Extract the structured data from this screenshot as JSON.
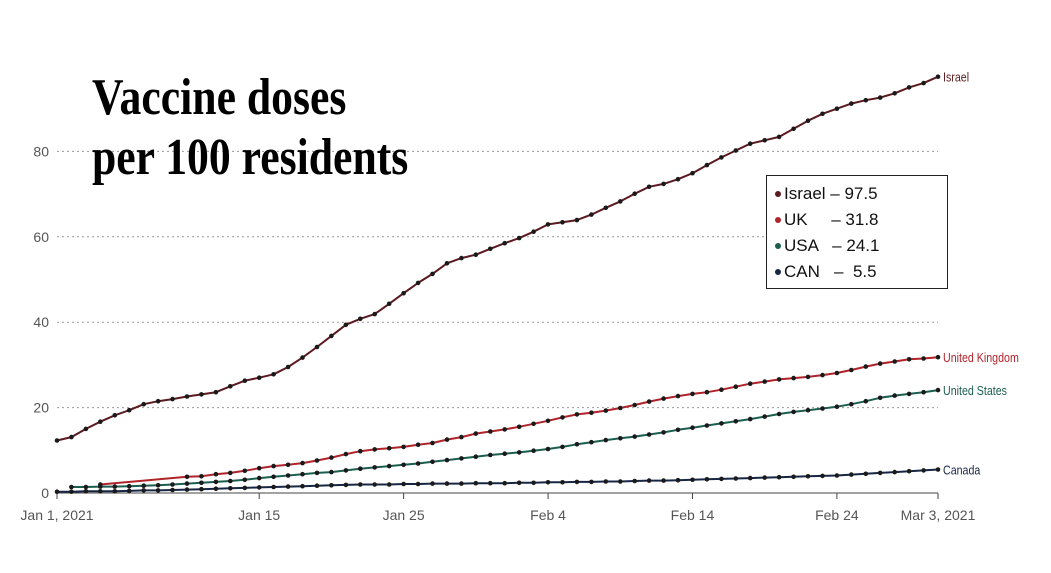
{
  "title": {
    "line1": "Vaccine doses",
    "line2": "per 100 residents"
  },
  "legend": [
    {
      "marker": "dot",
      "color": "#5b1a1f",
      "text": "Israel – 97.5"
    },
    {
      "marker": "dot",
      "color": "#b0232a",
      "text": "UK     – 31.8"
    },
    {
      "marker": "dot",
      "color": "#1b5e4f",
      "text": "USA   – 24.1"
    },
    {
      "marker": "dot",
      "color": "#172645",
      "text": "CAN   –  5.5"
    }
  ],
  "chart_data": {
    "type": "line",
    "x_axis": {
      "range": [
        "2021-01-01",
        "2021-03-03"
      ],
      "tick_dates": [
        "2021-01-01",
        "2021-01-15",
        "2021-01-25",
        "2021-02-04",
        "2021-02-14",
        "2021-02-24",
        "2021-03-03"
      ],
      "tick_labels": [
        "Jan 1, 2021",
        "Jan 15",
        "Jan 25",
        "Feb 4",
        "Feb 14",
        "Feb 24",
        "Mar 3, 2021"
      ]
    },
    "y_axis": {
      "range": [
        0,
        100
      ],
      "ticks": [
        0,
        20,
        40,
        60,
        80
      ],
      "tick_labels": [
        "0",
        "20",
        "40",
        "60",
        "80"
      ]
    },
    "grid": "horizontal dotted",
    "series": [
      {
        "name": "Israel",
        "color": "#5b1a1f",
        "points": [
          [
            "2021-01-01",
            12.3
          ],
          [
            "2021-01-02",
            13.1
          ],
          [
            "2021-01-03",
            15.0
          ],
          [
            "2021-01-04",
            16.7
          ],
          [
            "2021-01-05",
            18.2
          ],
          [
            "2021-01-06",
            19.4
          ],
          [
            "2021-01-07",
            20.8
          ],
          [
            "2021-01-08",
            21.5
          ],
          [
            "2021-01-09",
            22.0
          ],
          [
            "2021-01-10",
            22.6
          ],
          [
            "2021-01-11",
            23.1
          ],
          [
            "2021-01-12",
            23.6
          ],
          [
            "2021-01-13",
            25.0
          ],
          [
            "2021-01-14",
            26.3
          ],
          [
            "2021-01-15",
            27.0
          ],
          [
            "2021-01-16",
            27.8
          ],
          [
            "2021-01-17",
            29.5
          ],
          [
            "2021-01-18",
            31.7
          ],
          [
            "2021-01-19",
            34.2
          ],
          [
            "2021-01-20",
            36.8
          ],
          [
            "2021-01-21",
            39.4
          ],
          [
            "2021-01-22",
            40.8
          ],
          [
            "2021-01-23",
            41.9
          ],
          [
            "2021-01-24",
            44.3
          ],
          [
            "2021-01-25",
            46.8
          ],
          [
            "2021-01-26",
            49.2
          ],
          [
            "2021-01-27",
            51.3
          ],
          [
            "2021-01-28",
            53.8
          ],
          [
            "2021-01-29",
            55.0
          ],
          [
            "2021-01-30",
            55.8
          ],
          [
            "2021-01-31",
            57.2
          ],
          [
            "2021-02-01",
            58.5
          ],
          [
            "2021-02-02",
            59.7
          ],
          [
            "2021-02-03",
            61.2
          ],
          [
            "2021-02-04",
            62.9
          ],
          [
            "2021-02-05",
            63.4
          ],
          [
            "2021-02-06",
            63.9
          ],
          [
            "2021-02-07",
            65.2
          ],
          [
            "2021-02-08",
            66.8
          ],
          [
            "2021-02-09",
            68.3
          ],
          [
            "2021-02-10",
            70.1
          ],
          [
            "2021-02-11",
            71.7
          ],
          [
            "2021-02-12",
            72.4
          ],
          [
            "2021-02-13",
            73.5
          ],
          [
            "2021-02-14",
            74.9
          ],
          [
            "2021-02-15",
            76.8
          ],
          [
            "2021-02-16",
            78.6
          ],
          [
            "2021-02-17",
            80.2
          ],
          [
            "2021-02-18",
            81.8
          ],
          [
            "2021-02-19",
            82.6
          ],
          [
            "2021-02-20",
            83.4
          ],
          [
            "2021-02-21",
            85.3
          ],
          [
            "2021-02-22",
            87.2
          ],
          [
            "2021-02-23",
            88.8
          ],
          [
            "2021-02-24",
            90.0
          ],
          [
            "2021-02-25",
            91.2
          ],
          [
            "2021-02-26",
            92.0
          ],
          [
            "2021-02-27",
            92.6
          ],
          [
            "2021-02-28",
            93.6
          ],
          [
            "2021-03-01",
            95.0
          ],
          [
            "2021-03-02",
            96.0
          ],
          [
            "2021-03-03",
            97.5
          ]
        ]
      },
      {
        "name": "United Kingdom",
        "color": "#b0232a",
        "points": [
          [
            "2021-01-04",
            2.0
          ],
          [
            "2021-01-10",
            3.8
          ],
          [
            "2021-01-11",
            3.9
          ],
          [
            "2021-01-12",
            4.4
          ],
          [
            "2021-01-13",
            4.7
          ],
          [
            "2021-01-14",
            5.2
          ],
          [
            "2021-01-15",
            5.8
          ],
          [
            "2021-01-16",
            6.3
          ],
          [
            "2021-01-17",
            6.6
          ],
          [
            "2021-01-18",
            7.0
          ],
          [
            "2021-01-19",
            7.6
          ],
          [
            "2021-01-20",
            8.3
          ],
          [
            "2021-01-21",
            9.1
          ],
          [
            "2021-01-22",
            9.8
          ],
          [
            "2021-01-23",
            10.2
          ],
          [
            "2021-01-24",
            10.5
          ],
          [
            "2021-01-25",
            10.8
          ],
          [
            "2021-01-26",
            11.3
          ],
          [
            "2021-01-27",
            11.7
          ],
          [
            "2021-01-28",
            12.5
          ],
          [
            "2021-01-29",
            13.1
          ],
          [
            "2021-01-30",
            13.9
          ],
          [
            "2021-01-31",
            14.4
          ],
          [
            "2021-02-01",
            14.9
          ],
          [
            "2021-02-02",
            15.5
          ],
          [
            "2021-02-03",
            16.2
          ],
          [
            "2021-02-04",
            16.9
          ],
          [
            "2021-02-05",
            17.7
          ],
          [
            "2021-02-06",
            18.4
          ],
          [
            "2021-02-07",
            18.8
          ],
          [
            "2021-02-08",
            19.3
          ],
          [
            "2021-02-09",
            19.9
          ],
          [
            "2021-02-10",
            20.6
          ],
          [
            "2021-02-11",
            21.4
          ],
          [
            "2021-02-12",
            22.1
          ],
          [
            "2021-02-13",
            22.7
          ],
          [
            "2021-02-14",
            23.2
          ],
          [
            "2021-02-15",
            23.6
          ],
          [
            "2021-02-16",
            24.2
          ],
          [
            "2021-02-17",
            24.9
          ],
          [
            "2021-02-18",
            25.6
          ],
          [
            "2021-02-19",
            26.1
          ],
          [
            "2021-02-20",
            26.6
          ],
          [
            "2021-02-21",
            26.9
          ],
          [
            "2021-02-22",
            27.2
          ],
          [
            "2021-02-23",
            27.6
          ],
          [
            "2021-02-24",
            28.1
          ],
          [
            "2021-02-25",
            28.8
          ],
          [
            "2021-02-26",
            29.6
          ],
          [
            "2021-02-27",
            30.3
          ],
          [
            "2021-02-28",
            30.8
          ],
          [
            "2021-03-01",
            31.3
          ],
          [
            "2021-03-02",
            31.5
          ],
          [
            "2021-03-03",
            31.8
          ]
        ]
      },
      {
        "name": "United States",
        "color": "#1b5e4f",
        "points": [
          [
            "2021-01-02",
            1.4
          ],
          [
            "2021-01-03",
            1.4
          ],
          [
            "2021-01-04",
            1.5
          ],
          [
            "2021-01-05",
            1.5
          ],
          [
            "2021-01-06",
            1.6
          ],
          [
            "2021-01-07",
            1.7
          ],
          [
            "2021-01-08",
            1.8
          ],
          [
            "2021-01-09",
            2.0
          ],
          [
            "2021-01-10",
            2.2
          ],
          [
            "2021-01-11",
            2.4
          ],
          [
            "2021-01-12",
            2.6
          ],
          [
            "2021-01-13",
            2.8
          ],
          [
            "2021-01-14",
            3.1
          ],
          [
            "2021-01-15",
            3.5
          ],
          [
            "2021-01-16",
            3.8
          ],
          [
            "2021-01-17",
            4.1
          ],
          [
            "2021-01-18",
            4.4
          ],
          [
            "2021-01-19",
            4.7
          ],
          [
            "2021-01-20",
            4.9
          ],
          [
            "2021-01-21",
            5.3
          ],
          [
            "2021-01-22",
            5.7
          ],
          [
            "2021-01-23",
            6.0
          ],
          [
            "2021-01-24",
            6.3
          ],
          [
            "2021-01-25",
            6.6
          ],
          [
            "2021-01-26",
            6.9
          ],
          [
            "2021-01-27",
            7.3
          ],
          [
            "2021-01-28",
            7.7
          ],
          [
            "2021-01-29",
            8.1
          ],
          [
            "2021-01-30",
            8.5
          ],
          [
            "2021-01-31",
            8.9
          ],
          [
            "2021-02-01",
            9.2
          ],
          [
            "2021-02-02",
            9.5
          ],
          [
            "2021-02-03",
            9.9
          ],
          [
            "2021-02-04",
            10.3
          ],
          [
            "2021-02-05",
            10.8
          ],
          [
            "2021-02-06",
            11.4
          ],
          [
            "2021-02-07",
            11.9
          ],
          [
            "2021-02-08",
            12.4
          ],
          [
            "2021-02-09",
            12.8
          ],
          [
            "2021-02-10",
            13.2
          ],
          [
            "2021-02-11",
            13.7
          ],
          [
            "2021-02-12",
            14.2
          ],
          [
            "2021-02-13",
            14.8
          ],
          [
            "2021-02-14",
            15.3
          ],
          [
            "2021-02-15",
            15.8
          ],
          [
            "2021-02-16",
            16.3
          ],
          [
            "2021-02-17",
            16.8
          ],
          [
            "2021-02-18",
            17.3
          ],
          [
            "2021-02-19",
            17.9
          ],
          [
            "2021-02-20",
            18.5
          ],
          [
            "2021-02-21",
            19.0
          ],
          [
            "2021-02-22",
            19.4
          ],
          [
            "2021-02-23",
            19.8
          ],
          [
            "2021-02-24",
            20.2
          ],
          [
            "2021-02-25",
            20.8
          ],
          [
            "2021-02-26",
            21.5
          ],
          [
            "2021-02-27",
            22.3
          ],
          [
            "2021-02-28",
            22.8
          ],
          [
            "2021-03-01",
            23.2
          ],
          [
            "2021-03-02",
            23.6
          ],
          [
            "2021-03-03",
            24.1
          ]
        ]
      },
      {
        "name": "Canada",
        "color": "#172645",
        "points": [
          [
            "2021-01-01",
            0.3
          ],
          [
            "2021-01-02",
            0.3
          ],
          [
            "2021-01-03",
            0.4
          ],
          [
            "2021-01-04",
            0.4
          ],
          [
            "2021-01-05",
            0.4
          ],
          [
            "2021-01-06",
            0.5
          ],
          [
            "2021-01-07",
            0.6
          ],
          [
            "2021-01-08",
            0.6
          ],
          [
            "2021-01-09",
            0.7
          ],
          [
            "2021-01-10",
            0.8
          ],
          [
            "2021-01-11",
            0.9
          ],
          [
            "2021-01-12",
            1.0
          ],
          [
            "2021-01-13",
            1.1
          ],
          [
            "2021-01-14",
            1.2
          ],
          [
            "2021-01-15",
            1.3
          ],
          [
            "2021-01-16",
            1.4
          ],
          [
            "2021-01-17",
            1.5
          ],
          [
            "2021-01-18",
            1.6
          ],
          [
            "2021-01-19",
            1.7
          ],
          [
            "2021-01-20",
            1.8
          ],
          [
            "2021-01-21",
            1.9
          ],
          [
            "2021-01-22",
            2.0
          ],
          [
            "2021-01-23",
            2.0
          ],
          [
            "2021-01-24",
            2.0
          ],
          [
            "2021-01-25",
            2.1
          ],
          [
            "2021-01-26",
            2.1
          ],
          [
            "2021-01-27",
            2.2
          ],
          [
            "2021-01-28",
            2.2
          ],
          [
            "2021-01-29",
            2.2
          ],
          [
            "2021-01-30",
            2.3
          ],
          [
            "2021-01-31",
            2.3
          ],
          [
            "2021-02-01",
            2.3
          ],
          [
            "2021-02-02",
            2.4
          ],
          [
            "2021-02-03",
            2.4
          ],
          [
            "2021-02-04",
            2.5
          ],
          [
            "2021-02-05",
            2.5
          ],
          [
            "2021-02-06",
            2.6
          ],
          [
            "2021-02-07",
            2.6
          ],
          [
            "2021-02-08",
            2.7
          ],
          [
            "2021-02-09",
            2.7
          ],
          [
            "2021-02-10",
            2.8
          ],
          [
            "2021-02-11",
            2.9
          ],
          [
            "2021-02-12",
            2.9
          ],
          [
            "2021-02-13",
            3.0
          ],
          [
            "2021-02-14",
            3.1
          ],
          [
            "2021-02-15",
            3.2
          ],
          [
            "2021-02-16",
            3.3
          ],
          [
            "2021-02-17",
            3.4
          ],
          [
            "2021-02-18",
            3.5
          ],
          [
            "2021-02-19",
            3.6
          ],
          [
            "2021-02-20",
            3.7
          ],
          [
            "2021-02-21",
            3.8
          ],
          [
            "2021-02-22",
            3.9
          ],
          [
            "2021-02-23",
            4.0
          ],
          [
            "2021-02-24",
            4.1
          ],
          [
            "2021-02-25",
            4.3
          ],
          [
            "2021-02-26",
            4.5
          ],
          [
            "2021-02-27",
            4.7
          ],
          [
            "2021-02-28",
            4.9
          ],
          [
            "2021-03-01",
            5.1
          ],
          [
            "2021-03-02",
            5.3
          ],
          [
            "2021-03-03",
            5.5
          ]
        ]
      }
    ]
  }
}
